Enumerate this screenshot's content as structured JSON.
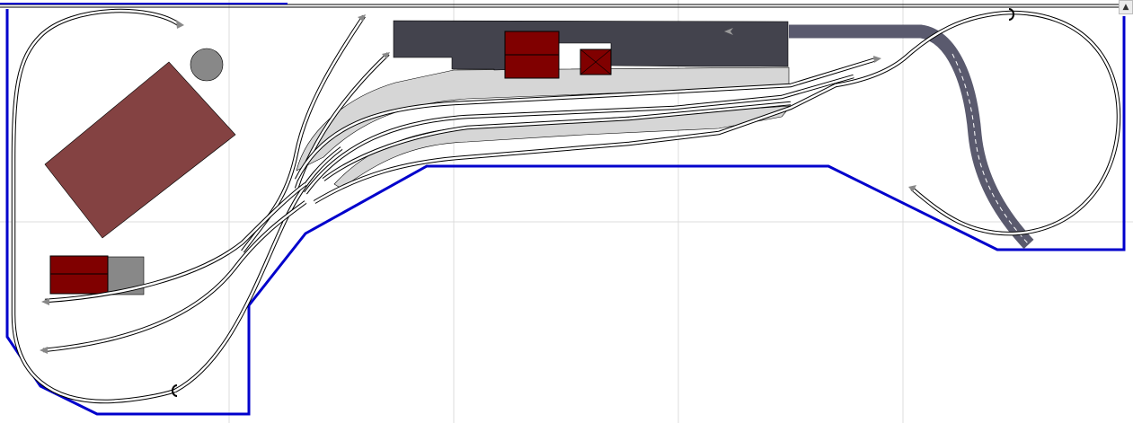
{
  "app": {
    "view": "track-plan-editor"
  },
  "colors": {
    "baseboard_outline": "#0000cc",
    "grid": "#dcdcdc",
    "station_building": "#43434d",
    "platform": "#d6d6d6",
    "goods_shed": "#800000",
    "barn": "#844242",
    "bridge_track": "#5a5a6e",
    "tank": "#888888"
  },
  "scrollbar": {
    "up_icon": "arrow-up-icon",
    "up_glyph": "▲"
  }
}
